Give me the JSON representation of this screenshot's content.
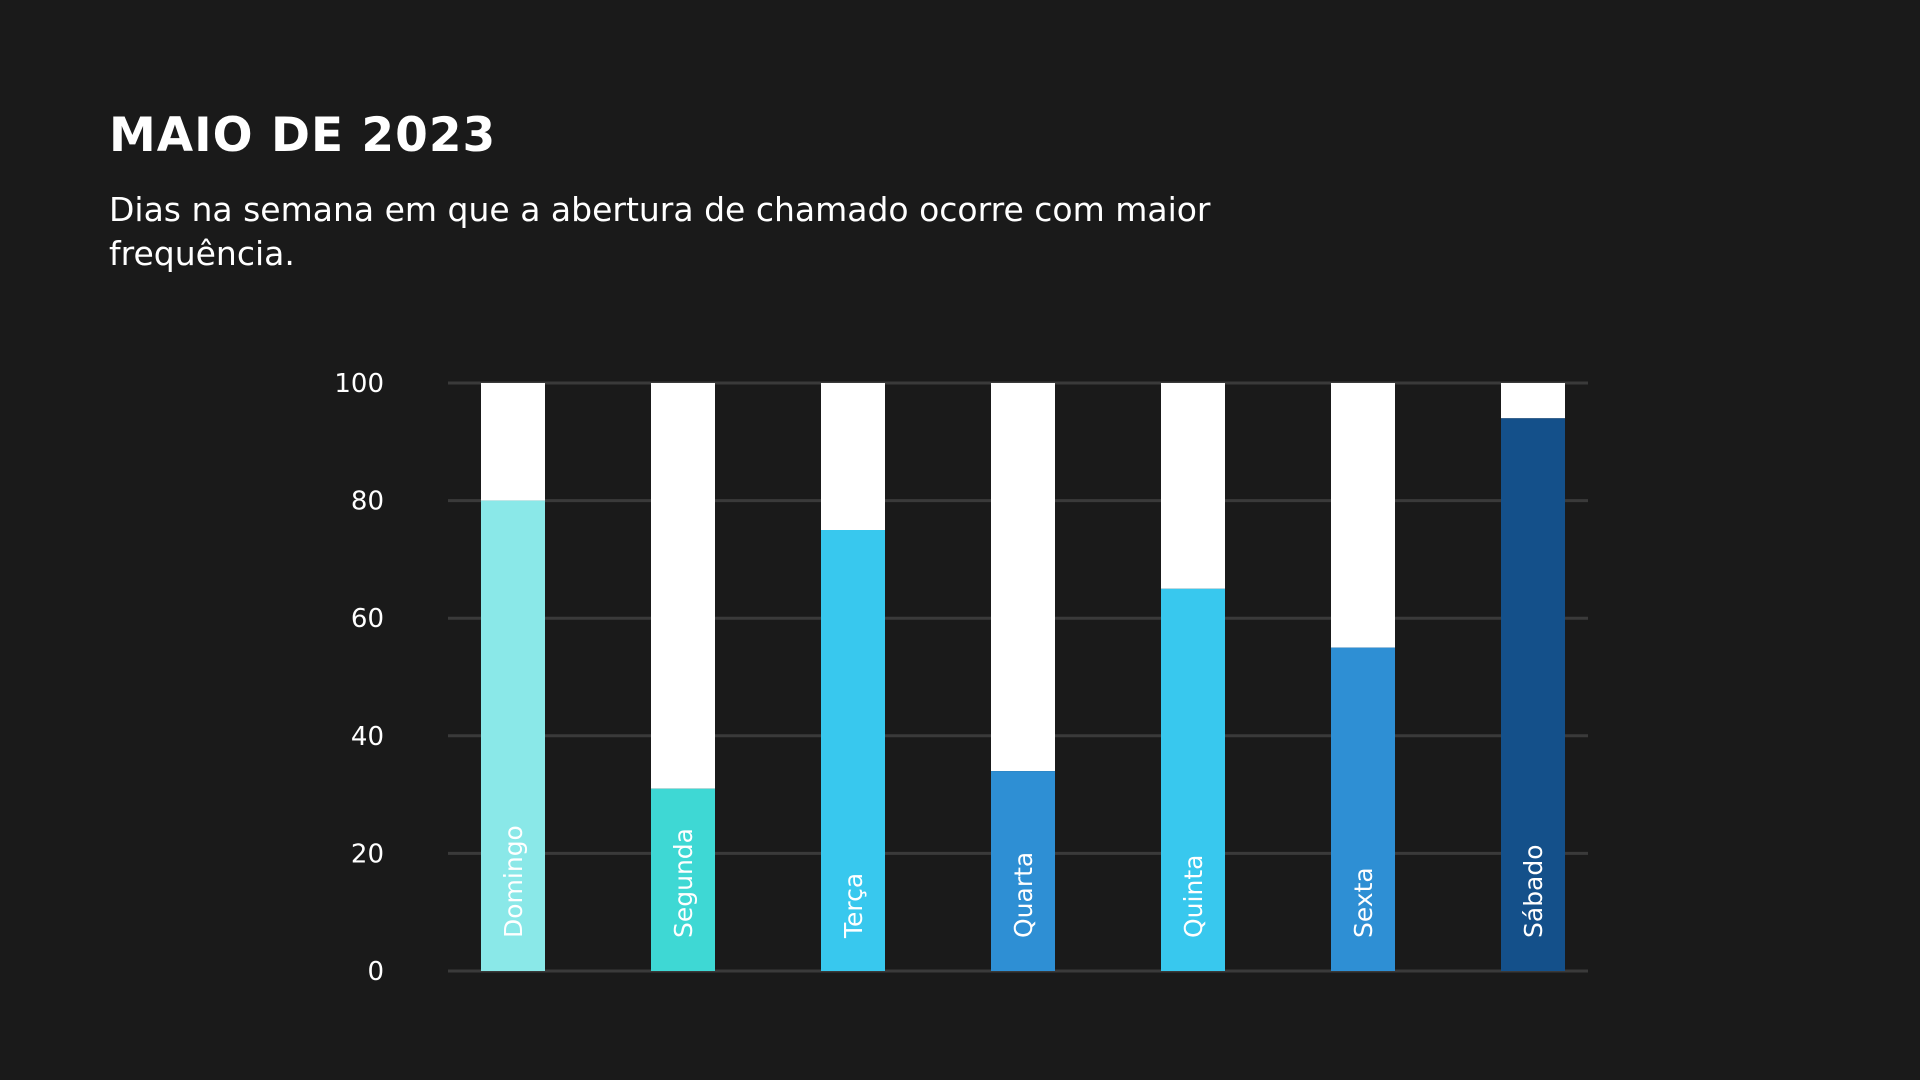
{
  "header": {
    "title": "MAIO DE 2023",
    "subtitle": "Dias na semana em que a abertura de chamado ocorre com maior frequência."
  },
  "chart_data": {
    "type": "bar",
    "stacked_to": 100,
    "categories": [
      "Domingo",
      "Segunda",
      "Terça",
      "Quarta",
      "Quinta",
      "Sexta",
      "Sábado"
    ],
    "values": [
      80,
      31,
      75,
      34,
      65,
      55,
      94
    ],
    "ylim": [
      0,
      100
    ],
    "yticks": [
      0,
      20,
      40,
      60,
      80,
      100
    ],
    "grid": true,
    "remainder_color": "#ffffff",
    "colors": [
      "#8ae8e8",
      "#3ed8d4",
      "#38c8ee",
      "#2e8fd4",
      "#38c8ee",
      "#2e8fd4",
      "#14508a"
    ],
    "title": "",
    "xlabel": "",
    "ylabel": ""
  }
}
